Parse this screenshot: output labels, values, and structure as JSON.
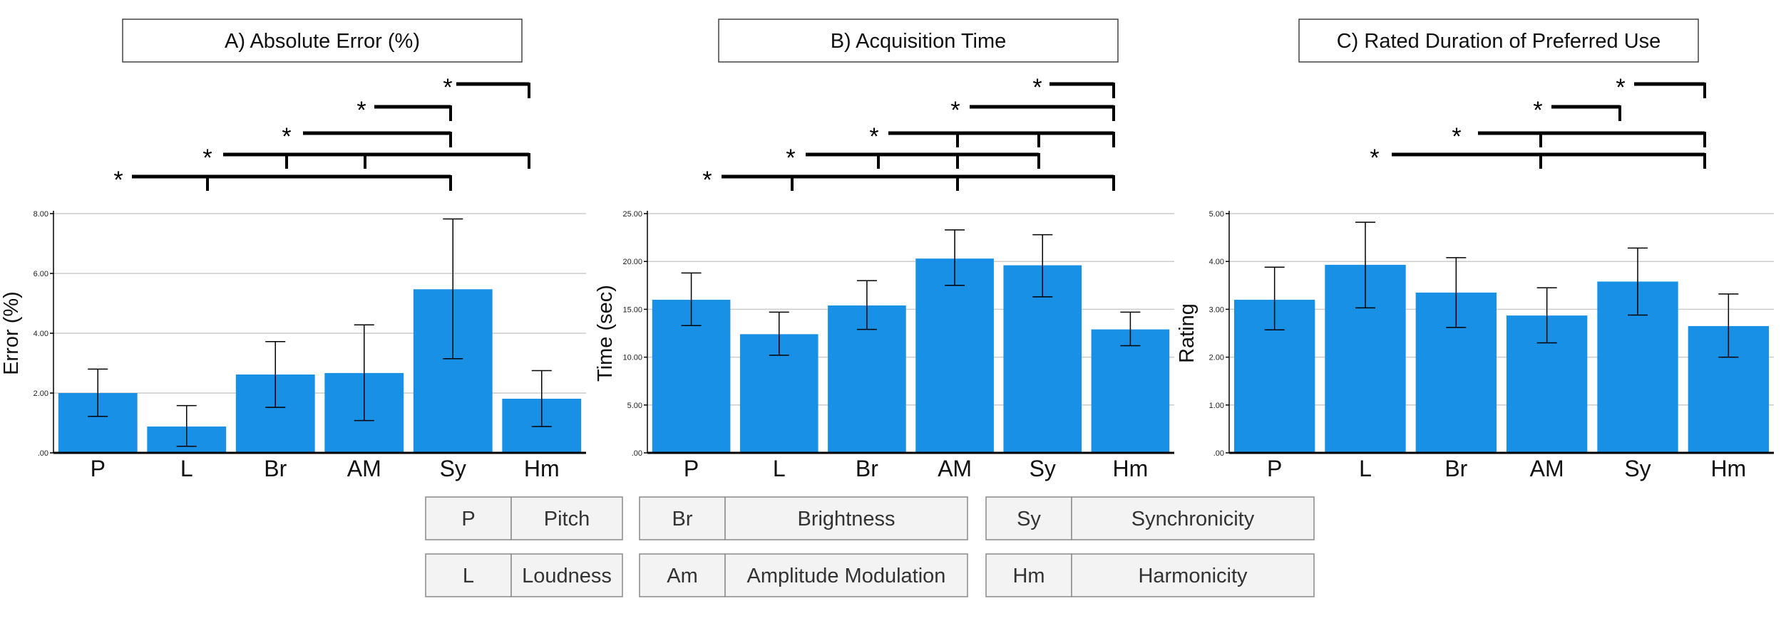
{
  "colors": {
    "bar": "#1790e6",
    "axis": "#000000",
    "grid": "#cccccc",
    "error_bar": "#000000",
    "legend_bg": "#f3f3f3",
    "legend_border": "#8a8a8a"
  },
  "chart_data": [
    {
      "type": "bar",
      "title": "A) Absolute Error (%)",
      "ylabel": "Error (%)",
      "categories": [
        "P",
        "L",
        "Br",
        "AM",
        "Sy",
        "Hm"
      ],
      "values": [
        2.0,
        0.88,
        2.62,
        2.67,
        5.47,
        1.81
      ],
      "error_low": [
        1.22,
        0.22,
        1.52,
        1.08,
        3.15,
        0.88
      ],
      "error_high": [
        2.8,
        1.58,
        3.72,
        4.28,
        7.82,
        2.75
      ],
      "ylim": [
        0,
        8.0
      ],
      "yticks": [
        0,
        2.0,
        4.0,
        6.0,
        8.0
      ],
      "ytick_labels": [
        ".00",
        "2.00",
        "4.00",
        "6.00",
        "8.00"
      ],
      "grid": true,
      "significance": [
        {
          "marker": "*",
          "from": "P",
          "to": "Sy"
        },
        {
          "marker": "*",
          "from": "L",
          "to": "Hm"
        },
        {
          "marker": "*",
          "from": "Br",
          "to": "Sy"
        },
        {
          "marker": "*",
          "from": "AM",
          "to": "Sy"
        },
        {
          "marker": "*",
          "from": "Sy",
          "to": "Hm"
        }
      ]
    },
    {
      "type": "bar",
      "title": "B) Acquisition Time",
      "ylabel": "Time (sec)",
      "categories": [
        "P",
        "L",
        "Br",
        "AM",
        "Sy",
        "Hm"
      ],
      "values": [
        16.0,
        12.4,
        15.4,
        20.3,
        19.6,
        12.9
      ],
      "error_low": [
        13.3,
        10.2,
        12.9,
        17.5,
        16.3,
        11.2
      ],
      "error_high": [
        18.8,
        14.7,
        18.0,
        23.3,
        22.8,
        14.7
      ],
      "ylim": [
        0,
        25.0
      ],
      "yticks": [
        0,
        5.0,
        10.0,
        15.0,
        20.0,
        25.0
      ],
      "ytick_labels": [
        ".00",
        "5.00",
        "10.00",
        "15.00",
        "20.00",
        "25.00"
      ],
      "grid": true,
      "significance": [
        {
          "marker": "*",
          "from": "P",
          "to": "Hm"
        },
        {
          "marker": "*",
          "from": "L",
          "to": "Sy"
        },
        {
          "marker": "*",
          "from": "Br",
          "to": "Hm"
        },
        {
          "marker": "*",
          "from": "AM",
          "to": "Hm"
        },
        {
          "marker": "*",
          "from": "Sy",
          "to": "Hm"
        }
      ]
    },
    {
      "type": "bar",
      "title": "C) Rated Duration of Preferred Use",
      "ylabel": "Rating",
      "categories": [
        "P",
        "L",
        "Br",
        "AM",
        "Sy",
        "Hm"
      ],
      "values": [
        3.2,
        3.93,
        3.35,
        2.87,
        3.58,
        2.65
      ],
      "error_low": [
        2.57,
        3.03,
        2.62,
        2.3,
        2.88,
        2.0
      ],
      "error_high": [
        3.88,
        4.82,
        4.08,
        3.45,
        4.28,
        3.32
      ],
      "ylim": [
        0,
        5.0
      ],
      "yticks": [
        0,
        1.0,
        2.0,
        3.0,
        4.0,
        5.0
      ],
      "ytick_labels": [
        ".00",
        "1.00",
        "2.00",
        "3.00",
        "4.00",
        "5.00"
      ],
      "grid": true,
      "significance": [
        {
          "marker": "*",
          "from": "AM",
          "to": "Hm"
        },
        {
          "marker": "*",
          "from": "AM",
          "to": "Hm"
        },
        {
          "marker": "*",
          "from": "Sy",
          "to": "Sy"
        },
        {
          "marker": "*",
          "from": "Hm",
          "to": "Hm"
        }
      ]
    }
  ],
  "legend": {
    "columns": [
      [
        {
          "abbr": "P",
          "full": "Pitch"
        },
        {
          "abbr": "L",
          "full": "Loudness"
        }
      ],
      [
        {
          "abbr": "Br",
          "full": "Brightness"
        },
        {
          "abbr": "Am",
          "full": "Amplitude Modulation"
        }
      ],
      [
        {
          "abbr": "Sy",
          "full": "Synchronicity"
        },
        {
          "abbr": "Hm",
          "full": "Harmonicity"
        }
      ]
    ]
  }
}
